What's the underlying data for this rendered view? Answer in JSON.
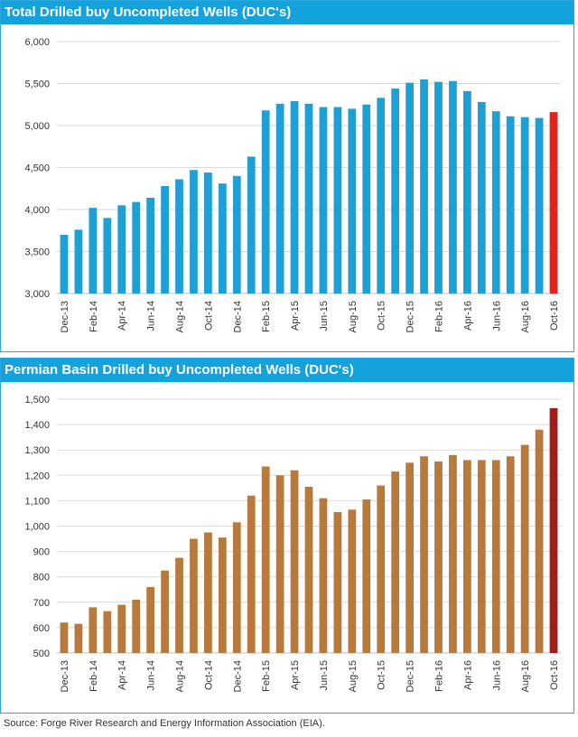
{
  "chart_data": [
    {
      "type": "bar",
      "title": "Total Drilled buy Uncompleted Wells (DUC's)",
      "ylim": [
        3000,
        6000
      ],
      "yticks": [
        3000,
        3500,
        4000,
        4500,
        5000,
        5500,
        6000
      ],
      "grid": true,
      "bar_color": "#1e9fd6",
      "highlight_color": "#e5211e",
      "highlight_index": 34,
      "categories": [
        "Dec-13",
        "Jan-14",
        "Feb-14",
        "Mar-14",
        "Apr-14",
        "May-14",
        "Jun-14",
        "Jul-14",
        "Aug-14",
        "Sep-14",
        "Oct-14",
        "Nov-14",
        "Dec-14",
        "Jan-15",
        "Feb-15",
        "Mar-15",
        "Apr-15",
        "May-15",
        "Jun-15",
        "Jul-15",
        "Aug-15",
        "Sep-15",
        "Oct-15",
        "Nov-15",
        "Dec-15",
        "Jan-16",
        "Feb-16",
        "Mar-16",
        "Apr-16",
        "May-16",
        "Jun-16",
        "Jul-16",
        "Aug-16",
        "Sep-16",
        "Oct-16"
      ],
      "tick_labels": [
        "Dec-13",
        "Feb-14",
        "Apr-14",
        "Jun-14",
        "Aug-14",
        "Oct-14",
        "Dec-14",
        "Feb-15",
        "Apr-15",
        "Jun-15",
        "Aug-15",
        "Oct-15",
        "Dec-15",
        "Feb-16",
        "Apr-16",
        "Jun-16",
        "Aug-16",
        "Oct-16"
      ],
      "values": [
        3700,
        3760,
        4020,
        3900,
        4050,
        4090,
        4140,
        4280,
        4360,
        4470,
        4440,
        4310,
        4400,
        4630,
        5180,
        5260,
        5290,
        5260,
        5220,
        5220,
        5200,
        5250,
        5330,
        5440,
        5510,
        5550,
        5520,
        5530,
        5410,
        5280,
        5170,
        5110,
        5100,
        5090,
        5160
      ]
    },
    {
      "type": "bar",
      "title": "Permian Basin Drilled buy Uncompleted Wells (DUC's)",
      "ylim": [
        500,
        1500
      ],
      "yticks": [
        500,
        600,
        700,
        800,
        900,
        1000,
        1100,
        1200,
        1300,
        1400,
        1500
      ],
      "grid": true,
      "bar_color": "#b87a3c",
      "highlight_color": "#a31c1c",
      "highlight_index": 34,
      "categories": [
        "Dec-13",
        "Jan-14",
        "Feb-14",
        "Mar-14",
        "Apr-14",
        "May-14",
        "Jun-14",
        "Jul-14",
        "Aug-14",
        "Sep-14",
        "Oct-14",
        "Nov-14",
        "Dec-14",
        "Jan-15",
        "Feb-15",
        "Mar-15",
        "Apr-15",
        "May-15",
        "Jun-15",
        "Jul-15",
        "Aug-15",
        "Sep-15",
        "Oct-15",
        "Nov-15",
        "Dec-15",
        "Jan-16",
        "Feb-16",
        "Mar-16",
        "Apr-16",
        "May-16",
        "Jun-16",
        "Jul-16",
        "Aug-16",
        "Sep-16",
        "Oct-16"
      ],
      "tick_labels": [
        "Dec-13",
        "Feb-14",
        "Apr-14",
        "Jun-14",
        "Aug-14",
        "Oct-14",
        "Dec-14",
        "Feb-15",
        "Apr-15",
        "Jun-15",
        "Aug-15",
        "Oct-15",
        "Dec-15",
        "Feb-16",
        "Apr-16",
        "Jun-16",
        "Aug-16",
        "Oct-16"
      ],
      "values": [
        620,
        615,
        680,
        665,
        690,
        710,
        760,
        825,
        875,
        950,
        975,
        955,
        1015,
        1120,
        1235,
        1200,
        1220,
        1155,
        1110,
        1055,
        1065,
        1105,
        1160,
        1215,
        1250,
        1275,
        1255,
        1280,
        1260,
        1260,
        1260,
        1275,
        1320,
        1380,
        1465
      ]
    }
  ],
  "source_text": "Source:  Forge River Research and Energy Information Association (EIA)."
}
